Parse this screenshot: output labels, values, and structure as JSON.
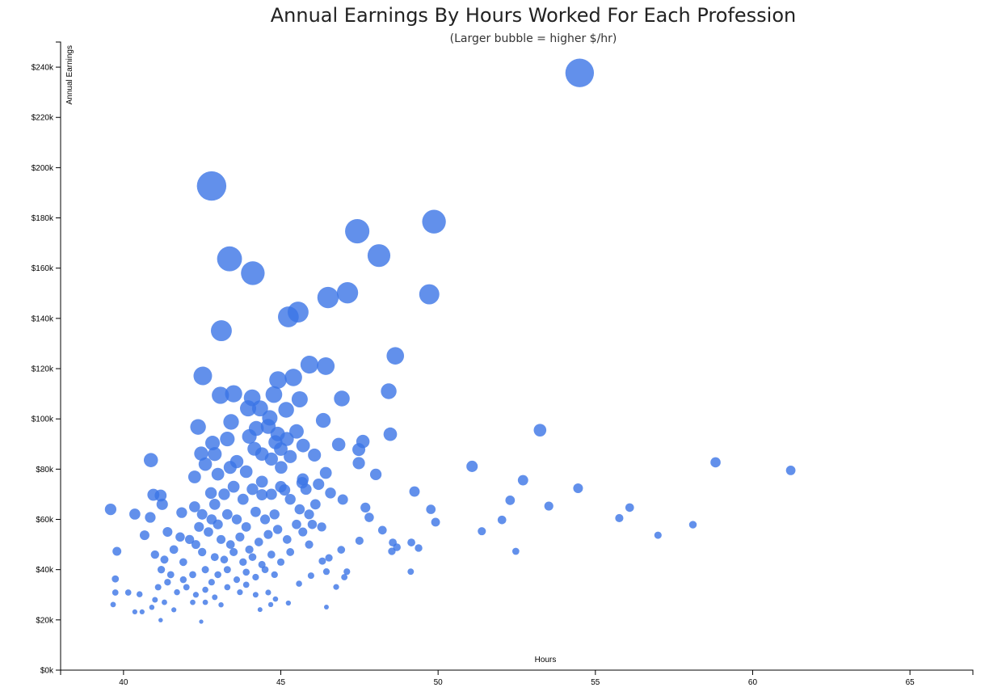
{
  "chart_data": {
    "type": "scatter",
    "title": "Annual Earnings By Hours Worked For Each Profession",
    "subtitle": "(Larger bubble = higher $/hr)",
    "xlabel": "Hours",
    "ylabel": "Annual Earnings",
    "xlim": [
      38,
      67
    ],
    "ylim": [
      0,
      250000
    ],
    "x_ticks": [
      "40",
      "45",
      "50",
      "55",
      "60",
      "65"
    ],
    "x_tick_values": [
      40,
      45,
      50,
      55,
      60,
      65
    ],
    "y_ticks": [
      "$0k",
      "$20k",
      "$40k",
      "$60k",
      "$80k",
      "$100k",
      "$120k",
      "$140k",
      "$160k",
      "$180k",
      "$200k",
      "$220k",
      "$240k"
    ],
    "y_tick_values": [
      0,
      20000,
      40000,
      60000,
      80000,
      100000,
      120000,
      140000,
      160000,
      180000,
      200000,
      220000,
      240000
    ],
    "bubble_size_encodes": "hourly wage (earnings / hours / 52)",
    "grid": false,
    "legend": "none",
    "color": "#3b74e6",
    "points": [
      [
        54.5,
        237700
      ],
      [
        42.8,
        192700
      ],
      [
        49.87,
        178500
      ],
      [
        47.43,
        174700
      ],
      [
        43.37,
        163700
      ],
      [
        48.12,
        165000
      ],
      [
        44.11,
        158000
      ],
      [
        47.12,
        150200
      ],
      [
        46.5,
        148300
      ],
      [
        49.72,
        149600
      ],
      [
        45.55,
        142500
      ],
      [
        45.24,
        140600
      ],
      [
        43.11,
        135100
      ],
      [
        48.64,
        125100
      ],
      [
        45.91,
        121600
      ],
      [
        46.43,
        121000
      ],
      [
        42.52,
        117100
      ],
      [
        45.4,
        116500
      ],
      [
        44.91,
        115500
      ],
      [
        48.43,
        111000
      ],
      [
        43.08,
        109400
      ],
      [
        43.5,
        110000
      ],
      [
        44.09,
        108400
      ],
      [
        44.78,
        109700
      ],
      [
        45.6,
        107800
      ],
      [
        46.94,
        108100
      ],
      [
        45.17,
        103600
      ],
      [
        44.34,
        104200
      ],
      [
        43.96,
        104200
      ],
      [
        46.35,
        99400
      ],
      [
        44.65,
        100400
      ],
      [
        53.24,
        95500
      ],
      [
        42.37,
        96800
      ],
      [
        43.42,
        98800
      ],
      [
        44.22,
        96200
      ],
      [
        48.48,
        93900
      ],
      [
        47.61,
        91000
      ],
      [
        45.19,
        92000
      ],
      [
        44.83,
        90700
      ],
      [
        42.83,
        90400
      ],
      [
        46.84,
        89800
      ],
      [
        45.71,
        89400
      ],
      [
        42.47,
        86200
      ],
      [
        47.48,
        87800
      ],
      [
        46.07,
        85600
      ],
      [
        44.16,
        88100
      ],
      [
        40.87,
        83600
      ],
      [
        58.82,
        82700
      ],
      [
        61.21,
        79500
      ],
      [
        51.08,
        81100
      ],
      [
        47.48,
        82400
      ],
      [
        48.02,
        77900
      ],
      [
        46.43,
        78500
      ],
      [
        43.39,
        80700
      ],
      [
        45.01,
        80700
      ],
      [
        42.26,
        76900
      ],
      [
        45.68,
        74600
      ],
      [
        52.7,
        75600
      ],
      [
        54.45,
        72400
      ],
      [
        49.25,
        71100
      ],
      [
        46.58,
        70500
      ],
      [
        40.95,
        69800
      ],
      [
        41.18,
        69500
      ],
      [
        42.78,
        70500
      ],
      [
        44.4,
        69800
      ],
      [
        45.12,
        71700
      ],
      [
        52.29,
        67600
      ],
      [
        41.23,
        66000
      ],
      [
        46.97,
        67900
      ],
      [
        53.52,
        65300
      ],
      [
        56.09,
        64700
      ],
      [
        47.69,
        64700
      ],
      [
        49.77,
        64000
      ],
      [
        39.59,
        64000
      ],
      [
        40.36,
        62100
      ],
      [
        41.85,
        62700
      ],
      [
        42.26,
        65000
      ],
      [
        47.81,
        60800
      ],
      [
        55.76,
        60500
      ],
      [
        52.03,
        59800
      ],
      [
        49.92,
        58900
      ],
      [
        40.85,
        60800
      ],
      [
        58.1,
        57900
      ],
      [
        51.39,
        55300
      ],
      [
        56.99,
        53700
      ],
      [
        40.67,
        53700
      ],
      [
        48.23,
        55700
      ],
      [
        47.5,
        51500
      ],
      [
        48.56,
        50800
      ],
      [
        49.15,
        50800
      ],
      [
        48.69,
        48900
      ],
      [
        49.38,
        48600
      ],
      [
        48.53,
        47300
      ],
      [
        52.47,
        47300
      ],
      [
        39.79,
        47300
      ],
      [
        46.92,
        47900
      ],
      [
        46.53,
        44700
      ],
      [
        46.32,
        43400
      ],
      [
        47.1,
        39200
      ],
      [
        46.45,
        39200
      ],
      [
        49.13,
        39200
      ],
      [
        47.02,
        37000
      ],
      [
        45.96,
        37600
      ],
      [
        39.74,
        36300
      ],
      [
        46.76,
        33100
      ],
      [
        45.58,
        34400
      ],
      [
        39.74,
        30900
      ],
      [
        40.15,
        30900
      ],
      [
        40.51,
        30200
      ],
      [
        39.67,
        26100
      ],
      [
        40.36,
        23200
      ],
      [
        40.59,
        23200
      ],
      [
        46.45,
        25100
      ],
      [
        45.24,
        26700
      ],
      [
        44.68,
        26100
      ],
      [
        42.47,
        19300
      ],
      [
        41.18,
        19900
      ],
      [
        44.34,
        24100
      ],
      [
        44.83,
        28300
      ],
      [
        44.6,
        30900
      ],
      [
        41.0,
        46000
      ],
      [
        41.3,
        44000
      ],
      [
        41.6,
        48000
      ],
      [
        41.9,
        43000
      ],
      [
        42.1,
        52000
      ],
      [
        41.4,
        55000
      ],
      [
        41.8,
        53000
      ],
      [
        42.3,
        50000
      ],
      [
        42.5,
        47000
      ],
      [
        41.2,
        40000
      ],
      [
        41.5,
        38000
      ],
      [
        41.9,
        36000
      ],
      [
        42.2,
        38000
      ],
      [
        42.6,
        40000
      ],
      [
        41.1,
        33000
      ],
      [
        41.4,
        35000
      ],
      [
        41.7,
        31000
      ],
      [
        42.0,
        33000
      ],
      [
        42.3,
        30000
      ],
      [
        41.0,
        28000
      ],
      [
        41.3,
        27000
      ],
      [
        40.9,
        25000
      ],
      [
        41.6,
        24000
      ],
      [
        42.6,
        32000
      ],
      [
        42.8,
        35000
      ],
      [
        42.7,
        55000
      ],
      [
        43.0,
        58000
      ],
      [
        43.3,
        62000
      ],
      [
        43.6,
        60000
      ],
      [
        43.9,
        57000
      ],
      [
        44.2,
        63000
      ],
      [
        44.5,
        60000
      ],
      [
        44.8,
        62000
      ],
      [
        43.1,
        52000
      ],
      [
        43.4,
        50000
      ],
      [
        43.7,
        53000
      ],
      [
        44.0,
        48000
      ],
      [
        44.3,
        51000
      ],
      [
        44.6,
        54000
      ],
      [
        44.9,
        56000
      ],
      [
        45.2,
        52000
      ],
      [
        45.5,
        58000
      ],
      [
        42.9,
        45000
      ],
      [
        43.2,
        44000
      ],
      [
        43.5,
        47000
      ],
      [
        43.8,
        43000
      ],
      [
        44.1,
        45000
      ],
      [
        44.4,
        42000
      ],
      [
        44.7,
        46000
      ],
      [
        45.0,
        43000
      ],
      [
        45.3,
        47000
      ],
      [
        43.0,
        38000
      ],
      [
        43.3,
        40000
      ],
      [
        43.6,
        36000
      ],
      [
        43.9,
        39000
      ],
      [
        44.2,
        37000
      ],
      [
        44.5,
        40000
      ],
      [
        44.8,
        38000
      ],
      [
        42.9,
        66000
      ],
      [
        43.2,
        70000
      ],
      [
        43.5,
        73000
      ],
      [
        43.8,
        68000
      ],
      [
        44.1,
        72000
      ],
      [
        44.4,
        75000
      ],
      [
        44.7,
        70000
      ],
      [
        45.0,
        73000
      ],
      [
        45.3,
        68000
      ],
      [
        45.6,
        64000
      ],
      [
        45.9,
        62000
      ],
      [
        46.1,
        66000
      ],
      [
        45.8,
        72000
      ],
      [
        43.0,
        78000
      ],
      [
        43.6,
        83000
      ],
      [
        43.9,
        79000
      ],
      [
        44.4,
        86000
      ],
      [
        44.7,
        84000
      ],
      [
        45.0,
        88000
      ],
      [
        45.3,
        85000
      ],
      [
        45.7,
        76000
      ],
      [
        46.2,
        74000
      ],
      [
        42.6,
        82000
      ],
      [
        42.9,
        86000
      ],
      [
        43.3,
        92000
      ],
      [
        44.0,
        93000
      ],
      [
        44.6,
        97000
      ],
      [
        44.9,
        94000
      ],
      [
        45.5,
        95000
      ],
      [
        46.0,
        58000
      ],
      [
        46.3,
        57000
      ],
      [
        45.7,
        55000
      ],
      [
        45.9,
        50000
      ],
      [
        42.5,
        62000
      ],
      [
        42.8,
        60000
      ],
      [
        42.4,
        57000
      ],
      [
        43.3,
        33000
      ],
      [
        43.7,
        31000
      ],
      [
        42.9,
        29000
      ],
      [
        43.9,
        34000
      ],
      [
        44.2,
        30000
      ],
      [
        42.6,
        27000
      ],
      [
        43.1,
        26000
      ],
      [
        42.2,
        27000
      ]
    ]
  }
}
